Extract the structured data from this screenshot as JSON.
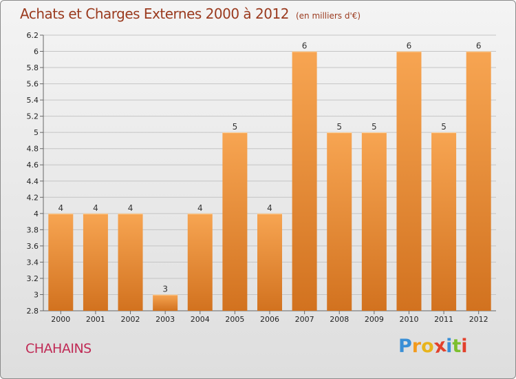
{
  "header": {
    "title": "Achats et Charges Externes 2000 à 2012",
    "unit": "(en milliers d'€)"
  },
  "footer": {
    "commune": "CHAHAINS",
    "logo": [
      "P",
      "r",
      "o",
      "x",
      "i",
      "t",
      "i"
    ]
  },
  "colors": {
    "bar_top": "#f7a552",
    "bar_bottom": "#d2721f",
    "title": "#9a3a1e",
    "commune": "#c02a55",
    "logo": [
      "#3a8fd6",
      "#f29a1e",
      "#e8b41c",
      "#e2412c",
      "#3a8fd6",
      "#7cbf2e",
      "#e2412c"
    ]
  },
  "chart_data": {
    "type": "bar",
    "categories": [
      "2000",
      "2001",
      "2002",
      "2003",
      "2004",
      "2005",
      "2006",
      "2007",
      "2008",
      "2009",
      "2010",
      "2011",
      "2012"
    ],
    "values": [
      4,
      4,
      4,
      3,
      4,
      5,
      4,
      6,
      5,
      5,
      6,
      5,
      6
    ],
    "data_labels": [
      "4",
      "4",
      "4",
      "3",
      "4",
      "5",
      "4",
      "6",
      "5",
      "5",
      "6",
      "5",
      "6"
    ],
    "yticks": [
      "2.8",
      "3",
      "3.2",
      "3.4",
      "3.6",
      "3.8",
      "4",
      "4.2",
      "4.4",
      "4.6",
      "4.8",
      "5",
      "5.2",
      "5.4",
      "5.6",
      "5.8",
      "6",
      "6.2"
    ],
    "grid": true,
    "legend": "none"
  }
}
